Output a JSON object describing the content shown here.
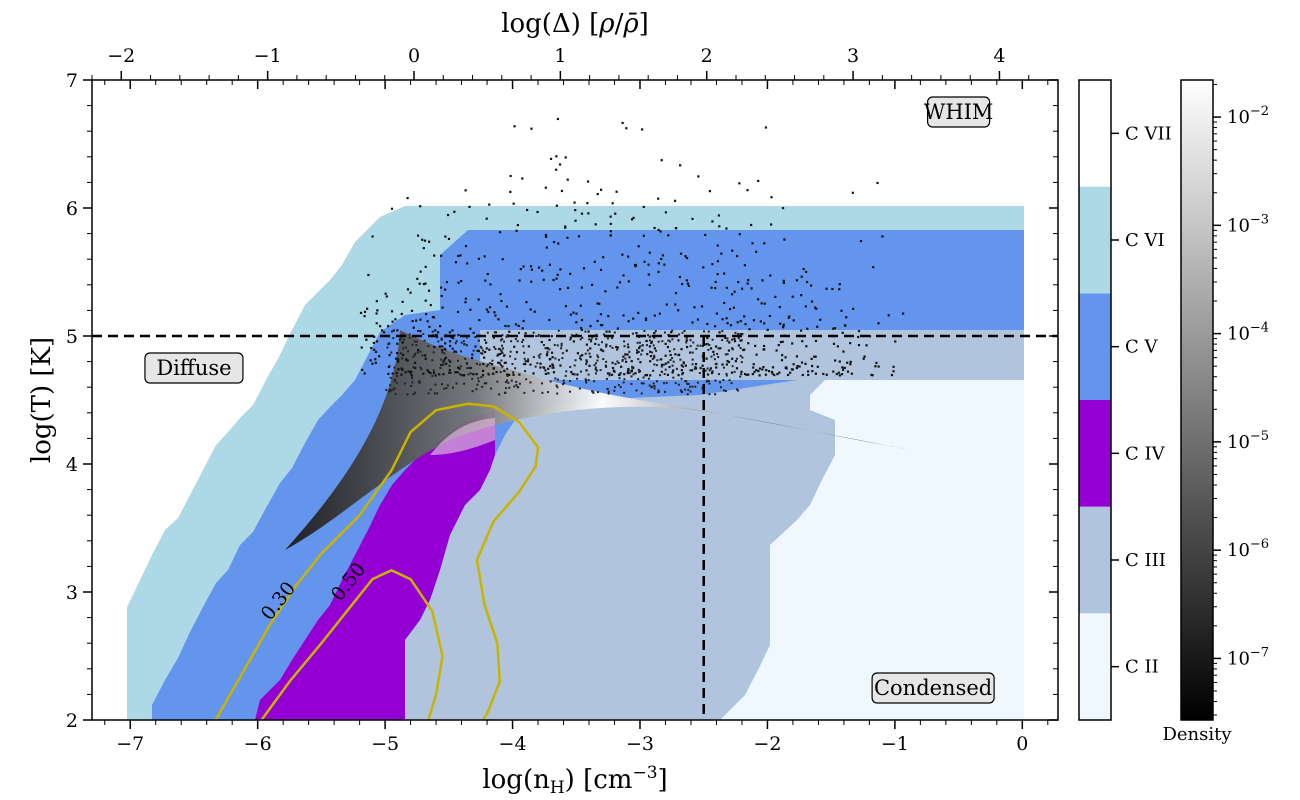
{
  "chart_data": {
    "type": "heatmap",
    "xlabel": "log(n_H) [cm^-3]",
    "ylabel": "log(T) [K]",
    "top_xlabel": "log(Δ) [ρ/ρ̄]",
    "xlim": [
      -7.3,
      0.28
    ],
    "ylim": [
      2,
      7
    ],
    "top_xlim": [
      -2.2,
      4.4
    ],
    "x_ticks": [
      -7,
      -6,
      -5,
      -4,
      -3,
      -2,
      -1,
      0
    ],
    "y_ticks": [
      2,
      3,
      4,
      5,
      6,
      7
    ],
    "top_ticks": [
      -2,
      -1,
      0,
      1,
      2,
      3,
      4
    ],
    "tick_labels": {
      "x": [
        "−7",
        "−6",
        "−5",
        "−4",
        "−3",
        "−2",
        "−1",
        "0"
      ],
      "y": [
        "2",
        "3",
        "4",
        "5",
        "6",
        "7"
      ],
      "top": [
        "−2",
        "−1",
        "0",
        "1",
        "2",
        "3",
        "4"
      ]
    },
    "dashed_lines": {
      "y": 5,
      "x": -2.5
    },
    "region_labels": [
      {
        "text": "WHIM",
        "x": -0.5,
        "y": 6.75
      },
      {
        "text": "Diffuse",
        "x": -6.5,
        "y": 4.75
      },
      {
        "text": "Condensed",
        "x": -0.7,
        "y": 2.25
      }
    ],
    "ion_colorbar": {
      "categories": [
        "C II",
        "C III",
        "C IV",
        "C V",
        "C VI",
        "C VII"
      ],
      "colors": [
        "#f0f8ff",
        "#b0c4de",
        "#9400d3",
        "#6495ed",
        "#add8e6",
        "#ffffff"
      ]
    },
    "density_colorbar": {
      "label": "Density",
      "scale": "log",
      "range": [
        2.7e-08,
        0.022
      ],
      "tick_exponents": [
        -7,
        -6,
        -5,
        -4,
        -3,
        -2
      ],
      "tick_labels": [
        "10^−7",
        "10^−6",
        "10^−5",
        "10^−4",
        "10^−3",
        "10^−2"
      ]
    },
    "contours": [
      {
        "label": "0.30",
        "color": "#c8b400",
        "label_at": {
          "x": -5.8,
          "y": 2.9
        },
        "points": [
          [
            -6.33,
            2.0
          ],
          [
            -6.1,
            2.4
          ],
          [
            -5.9,
            2.75
          ],
          [
            -5.7,
            3.05
          ],
          [
            -5.5,
            3.3
          ],
          [
            -5.2,
            3.6
          ],
          [
            -4.95,
            3.95
          ],
          [
            -4.8,
            4.25
          ],
          [
            -4.6,
            4.42
          ],
          [
            -4.35,
            4.47
          ],
          [
            -4.15,
            4.45
          ],
          [
            -3.95,
            4.33
          ],
          [
            -3.8,
            4.13
          ],
          [
            -3.82,
            3.98
          ],
          [
            -3.95,
            3.78
          ],
          [
            -4.15,
            3.55
          ],
          [
            -4.28,
            3.25
          ],
          [
            -4.22,
            2.9
          ],
          [
            -4.12,
            2.6
          ],
          [
            -4.1,
            2.3
          ],
          [
            -4.2,
            2.05
          ],
          [
            -4.23,
            2.0
          ]
        ]
      },
      {
        "label": "0.50",
        "color": "#c8b400",
        "label_at": {
          "x": -5.25,
          "y": 3.05
        },
        "points": [
          [
            -5.97,
            2.0
          ],
          [
            -5.75,
            2.3
          ],
          [
            -5.5,
            2.6
          ],
          [
            -5.3,
            2.85
          ],
          [
            -5.1,
            3.1
          ],
          [
            -4.95,
            3.17
          ],
          [
            -4.8,
            3.1
          ],
          [
            -4.63,
            2.85
          ],
          [
            -4.55,
            2.5
          ],
          [
            -4.6,
            2.2
          ],
          [
            -4.66,
            2.0
          ]
        ]
      }
    ]
  }
}
